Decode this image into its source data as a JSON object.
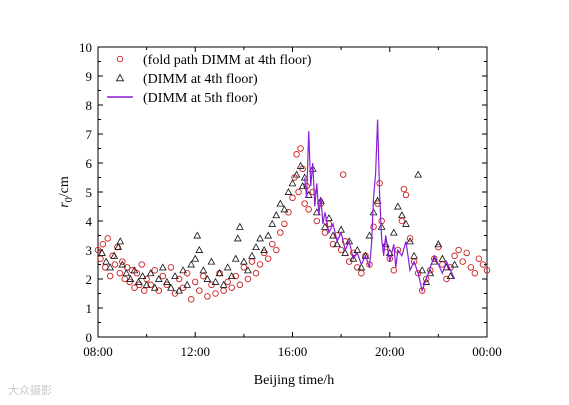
{
  "chart_data": {
    "type": "scatter",
    "xlabel": "Beijing time/h",
    "ylabel_main": "r",
    "ylabel_sub": "0",
    "ylabel_unit": "/cm",
    "xlim": [
      "08:00",
      "00:00"
    ],
    "x_ticks": [
      "08:00",
      "12:00",
      "16:00",
      "20:00",
      "00:00"
    ],
    "ylim": [
      0,
      10
    ],
    "y_ticks": [
      "0",
      "1",
      "2",
      "3",
      "4",
      "5",
      "6",
      "7",
      "8",
      "9",
      "10"
    ],
    "grid": false,
    "legend_position": "top-left",
    "series": [
      {
        "name": "(fold path DIMM at 4th floor)",
        "marker": "open-circle",
        "color": "#cc2222",
        "points": [
          [
            "08:00",
            3.0
          ],
          [
            "08:06",
            2.7
          ],
          [
            "08:12",
            3.2
          ],
          [
            "08:18",
            2.4
          ],
          [
            "08:24",
            3.4
          ],
          [
            "08:30",
            2.1
          ],
          [
            "08:36",
            2.8
          ],
          [
            "08:42",
            2.5
          ],
          [
            "08:48",
            3.1
          ],
          [
            "08:54",
            2.2
          ],
          [
            "09:00",
            2.6
          ],
          [
            "09:06",
            2.0
          ],
          [
            "09:12",
            2.4
          ],
          [
            "09:18",
            1.9
          ],
          [
            "09:24",
            2.3
          ],
          [
            "09:30",
            1.7
          ],
          [
            "09:36",
            2.2
          ],
          [
            "09:42",
            1.8
          ],
          [
            "09:48",
            2.5
          ],
          [
            "09:54",
            1.6
          ],
          [
            "10:00",
            2.0
          ],
          [
            "10:10",
            1.8
          ],
          [
            "10:20",
            2.3
          ],
          [
            "10:30",
            1.6
          ],
          [
            "10:40",
            2.1
          ],
          [
            "10:50",
            1.8
          ],
          [
            "11:00",
            2.4
          ],
          [
            "11:10",
            1.5
          ],
          [
            "11:20",
            2.0
          ],
          [
            "11:30",
            1.7
          ],
          [
            "11:40",
            2.2
          ],
          [
            "11:50",
            1.3
          ],
          [
            "12:00",
            1.9
          ],
          [
            "12:10",
            1.6
          ],
          [
            "12:20",
            2.1
          ],
          [
            "12:30",
            1.4
          ],
          [
            "12:40",
            1.8
          ],
          [
            "12:50",
            1.5
          ],
          [
            "13:00",
            2.2
          ],
          [
            "13:10",
            1.6
          ],
          [
            "13:20",
            1.9
          ],
          [
            "13:30",
            1.7
          ],
          [
            "13:40",
            2.1
          ],
          [
            "13:50",
            1.8
          ],
          [
            "14:00",
            2.4
          ],
          [
            "14:10",
            2.0
          ],
          [
            "14:20",
            2.6
          ],
          [
            "14:30",
            2.2
          ],
          [
            "14:40",
            2.5
          ],
          [
            "14:50",
            2.9
          ],
          [
            "15:00",
            2.7
          ],
          [
            "15:10",
            3.2
          ],
          [
            "15:20",
            3.0
          ],
          [
            "15:30",
            3.6
          ],
          [
            "15:40",
            3.9
          ],
          [
            "15:50",
            4.3
          ],
          [
            "16:00",
            4.8
          ],
          [
            "16:05",
            5.5
          ],
          [
            "16:10",
            6.3
          ],
          [
            "16:15",
            5.0
          ],
          [
            "16:20",
            6.5
          ],
          [
            "16:25",
            5.8
          ],
          [
            "16:30",
            4.6
          ],
          [
            "16:35",
            5.2
          ],
          [
            "16:40",
            4.4
          ],
          [
            "16:50",
            5.0
          ],
          [
            "17:00",
            4.0
          ],
          [
            "17:10",
            4.6
          ],
          [
            "17:20",
            3.6
          ],
          [
            "17:30",
            3.9
          ],
          [
            "17:40",
            3.2
          ],
          [
            "17:50",
            3.5
          ],
          [
            "18:00",
            3.0
          ],
          [
            "18:05",
            5.6
          ],
          [
            "18:10",
            3.3
          ],
          [
            "18:20",
            2.6
          ],
          [
            "18:30",
            2.9
          ],
          [
            "18:40",
            2.4
          ],
          [
            "18:50",
            2.2
          ],
          [
            "19:00",
            2.8
          ],
          [
            "19:10",
            2.5
          ],
          [
            "19:20",
            3.8
          ],
          [
            "19:30",
            4.6
          ],
          [
            "19:35",
            5.3
          ],
          [
            "19:40",
            4.0
          ],
          [
            "19:50",
            3.1
          ],
          [
            "20:00",
            2.7
          ],
          [
            "20:10",
            2.3
          ],
          [
            "20:20",
            3.0
          ],
          [
            "20:30",
            4.0
          ],
          [
            "20:35",
            5.1
          ],
          [
            "20:40",
            4.9
          ],
          [
            "20:50",
            3.4
          ],
          [
            "21:00",
            2.6
          ],
          [
            "21:10",
            2.2
          ],
          [
            "21:20",
            1.6
          ],
          [
            "21:30",
            2.0
          ],
          [
            "21:40",
            2.3
          ],
          [
            "21:50",
            2.7
          ],
          [
            "22:00",
            3.1
          ],
          [
            "22:10",
            2.5
          ],
          [
            "22:20",
            2.0
          ],
          [
            "22:30",
            2.4
          ],
          [
            "22:40",
            2.8
          ],
          [
            "22:50",
            3.0
          ],
          [
            "23:00",
            2.6
          ],
          [
            "23:10",
            2.9
          ],
          [
            "23:20",
            2.4
          ],
          [
            "23:30",
            2.2
          ],
          [
            "23:40",
            2.7
          ],
          [
            "23:50",
            2.5
          ],
          [
            "00:00",
            2.3
          ]
        ]
      },
      {
        "name": "(DIMM at 4th floor)",
        "marker": "open-triangle",
        "color": "#111111",
        "points": [
          [
            "08:10",
            2.9
          ],
          [
            "08:20",
            2.6
          ],
          [
            "08:30",
            2.4
          ],
          [
            "08:40",
            2.8
          ],
          [
            "08:50",
            3.1
          ],
          [
            "08:55",
            3.3
          ],
          [
            "09:00",
            2.5
          ],
          [
            "09:10",
            2.2
          ],
          [
            "09:20",
            2.0
          ],
          [
            "09:30",
            2.3
          ],
          [
            "09:40",
            1.9
          ],
          [
            "09:50",
            2.1
          ],
          [
            "10:00",
            1.8
          ],
          [
            "10:10",
            2.2
          ],
          [
            "10:20",
            1.7
          ],
          [
            "10:30",
            2.0
          ],
          [
            "10:40",
            2.4
          ],
          [
            "10:50",
            1.9
          ],
          [
            "11:00",
            1.7
          ],
          [
            "11:10",
            2.1
          ],
          [
            "11:20",
            1.6
          ],
          [
            "11:30",
            2.3
          ],
          [
            "11:40",
            1.8
          ],
          [
            "11:50",
            2.5
          ],
          [
            "12:00",
            2.7
          ],
          [
            "12:05",
            3.5
          ],
          [
            "12:10",
            3.0
          ],
          [
            "12:20",
            2.3
          ],
          [
            "12:30",
            2.0
          ],
          [
            "12:40",
            2.6
          ],
          [
            "12:50",
            1.9
          ],
          [
            "13:00",
            2.2
          ],
          [
            "13:10",
            1.8
          ],
          [
            "13:20",
            2.4
          ],
          [
            "13:30",
            2.1
          ],
          [
            "13:40",
            2.7
          ],
          [
            "13:45",
            3.4
          ],
          [
            "13:50",
            3.8
          ],
          [
            "14:00",
            2.6
          ],
          [
            "14:10",
            2.3
          ],
          [
            "14:20",
            2.8
          ],
          [
            "14:30",
            3.1
          ],
          [
            "14:40",
            3.4
          ],
          [
            "14:50",
            3.0
          ],
          [
            "15:00",
            3.5
          ],
          [
            "15:10",
            3.9
          ],
          [
            "15:20",
            4.2
          ],
          [
            "15:30",
            4.6
          ],
          [
            "15:40",
            4.4
          ],
          [
            "15:50",
            5.0
          ],
          [
            "16:00",
            5.3
          ],
          [
            "16:10",
            5.6
          ],
          [
            "16:20",
            5.9
          ],
          [
            "16:25",
            5.2
          ],
          [
            "16:30",
            5.5
          ],
          [
            "16:40",
            4.9
          ],
          [
            "16:50",
            5.8
          ],
          [
            "17:00",
            4.3
          ],
          [
            "17:10",
            4.7
          ],
          [
            "17:20",
            3.8
          ],
          [
            "17:30",
            4.1
          ],
          [
            "17:40",
            3.5
          ],
          [
            "17:50",
            3.2
          ],
          [
            "18:00",
            3.7
          ],
          [
            "18:10",
            2.9
          ],
          [
            "18:20",
            3.3
          ],
          [
            "18:30",
            2.7
          ],
          [
            "18:40",
            3.0
          ],
          [
            "18:50",
            2.4
          ],
          [
            "19:00",
            2.8
          ],
          [
            "19:10",
            3.5
          ],
          [
            "19:20",
            4.3
          ],
          [
            "19:30",
            4.7
          ],
          [
            "19:40",
            3.8
          ],
          [
            "19:50",
            3.2
          ],
          [
            "20:00",
            2.9
          ],
          [
            "20:10",
            3.6
          ],
          [
            "20:20",
            4.5
          ],
          [
            "20:30",
            4.2
          ],
          [
            "20:40",
            3.9
          ],
          [
            "20:50",
            3.3
          ],
          [
            "21:00",
            2.8
          ],
          [
            "21:10",
            5.6
          ],
          [
            "21:20",
            2.3
          ],
          [
            "21:30",
            1.9
          ],
          [
            "21:40",
            2.2
          ],
          [
            "21:50",
            2.6
          ],
          [
            "22:00",
            3.2
          ],
          [
            "22:10",
            2.7
          ],
          [
            "22:20",
            2.4
          ],
          [
            "22:30",
            2.1
          ],
          [
            "22:40",
            2.5
          ]
        ]
      },
      {
        "name": "(DIMM at 5th floor)",
        "marker": "line",
        "color": "#8b1fd6",
        "points": [
          [
            "16:30",
            5.5
          ],
          [
            "16:35",
            4.8
          ],
          [
            "16:40",
            7.1
          ],
          [
            "16:45",
            5.2
          ],
          [
            "16:50",
            6.0
          ],
          [
            "16:55",
            4.5
          ],
          [
            "17:00",
            5.3
          ],
          [
            "17:05",
            4.2
          ],
          [
            "17:10",
            4.8
          ],
          [
            "17:15",
            3.9
          ],
          [
            "17:20",
            4.3
          ],
          [
            "17:30",
            3.6
          ],
          [
            "17:40",
            3.9
          ],
          [
            "17:50",
            3.3
          ],
          [
            "18:00",
            3.6
          ],
          [
            "18:10",
            3.0
          ],
          [
            "18:20",
            3.3
          ],
          [
            "18:30",
            2.7
          ],
          [
            "18:40",
            2.9
          ],
          [
            "18:50",
            2.5
          ],
          [
            "19:00",
            2.8
          ],
          [
            "19:10",
            2.4
          ],
          [
            "19:15",
            3.2
          ],
          [
            "19:20",
            4.8
          ],
          [
            "19:25",
            5.6
          ],
          [
            "19:30",
            7.5
          ],
          [
            "19:35",
            4.9
          ],
          [
            "19:40",
            3.4
          ],
          [
            "19:45",
            2.8
          ],
          [
            "19:50",
            3.5
          ],
          [
            "20:00",
            2.6
          ],
          [
            "20:10",
            3.2
          ],
          [
            "20:15",
            2.4
          ],
          [
            "20:20",
            3.0
          ],
          [
            "20:30",
            2.8
          ],
          [
            "20:40",
            3.3
          ],
          [
            "20:50",
            2.3
          ],
          [
            "21:00",
            2.6
          ],
          [
            "21:10",
            2.2
          ],
          [
            "21:20",
            1.6
          ],
          [
            "21:30",
            2.0
          ],
          [
            "21:40",
            2.4
          ],
          [
            "21:50",
            2.8
          ],
          [
            "22:00",
            2.5
          ],
          [
            "22:10",
            2.2
          ],
          [
            "22:20",
            2.6
          ],
          [
            "22:30",
            2.3
          ],
          [
            "22:40",
            2.0
          ]
        ]
      }
    ]
  },
  "watermark": "大众摄影"
}
